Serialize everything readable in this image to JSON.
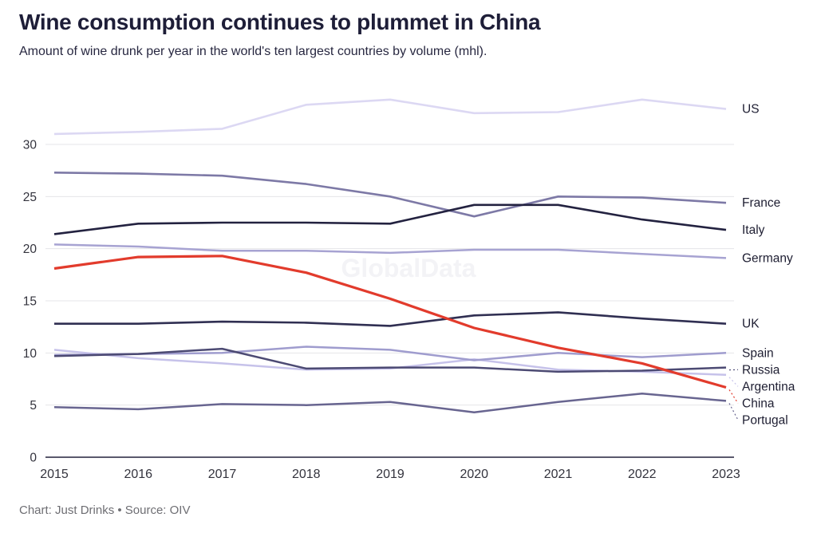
{
  "watermark": "GlobalData",
  "footer": {
    "credit": "Chart: Just Drinks • Source: OIV"
  },
  "colors": {
    "background": "#ffffff",
    "grid": "#e4e4e8",
    "axis": "#23223c",
    "tick_text": "#33333d",
    "series_label_text": "#1e1e32",
    "title_text": "#1e1e38",
    "subtitle_text": "#272740",
    "footer_text": "#6e6e73",
    "watermark_text": "#f3f3f6",
    "accent_red": "#e23b2c"
  },
  "chart_data": {
    "type": "line",
    "title": "Wine consumption continues to plummet in China",
    "subtitle": "Amount of wine drunk per year in the world's ten largest countries by volume (mhl).",
    "xlabel": "",
    "ylabel": "",
    "x": [
      2015,
      2016,
      2017,
      2018,
      2019,
      2020,
      2021,
      2022,
      2023
    ],
    "y_ticks": [
      0,
      5,
      10,
      15,
      20,
      25,
      30
    ],
    "ylim": [
      0,
      35.5
    ],
    "grid": "horizontal",
    "legend_position": "right-end-labels",
    "series": [
      {
        "name": "US",
        "color": "#dcd8f3",
        "width": 2.6,
        "values": [
          31.0,
          31.2,
          31.5,
          33.8,
          34.3,
          33.0,
          33.1,
          34.3,
          33.4
        ]
      },
      {
        "name": "France",
        "color": "#7d79a6",
        "width": 2.6,
        "values": [
          27.3,
          27.2,
          27.0,
          26.2,
          25.0,
          23.1,
          25.0,
          24.9,
          24.4
        ]
      },
      {
        "name": "Italy",
        "color": "#232240",
        "width": 2.6,
        "values": [
          21.4,
          22.4,
          22.5,
          22.5,
          22.4,
          24.2,
          24.2,
          22.8,
          21.8
        ]
      },
      {
        "name": "Germany",
        "color": "#a7a3d2",
        "width": 2.5,
        "values": [
          20.4,
          20.2,
          19.8,
          19.8,
          19.6,
          19.9,
          19.9,
          19.5,
          19.1
        ]
      },
      {
        "name": "UK",
        "color": "#302f52",
        "width": 2.6,
        "values": [
          12.8,
          12.8,
          13.0,
          12.9,
          12.6,
          13.6,
          13.9,
          13.3,
          12.8
        ]
      },
      {
        "name": "Spain",
        "color": "#9f9cce",
        "width": 2.5,
        "values": [
          9.8,
          9.9,
          10.0,
          10.6,
          10.3,
          9.3,
          10.0,
          9.6,
          10.0
        ]
      },
      {
        "name": "Russia",
        "color": "#4c4a73",
        "width": 2.5,
        "values": [
          9.7,
          9.9,
          10.4,
          8.5,
          8.6,
          8.6,
          8.2,
          8.3,
          8.6
        ]
      },
      {
        "name": "Argentina",
        "color": "#c6c2ea",
        "width": 2.5,
        "values": [
          10.3,
          9.5,
          9.0,
          8.4,
          8.5,
          9.4,
          8.4,
          8.2,
          7.9
        ]
      },
      {
        "name": "China",
        "color": "#e23b2c",
        "width": 3.2,
        "values": [
          18.1,
          19.2,
          19.3,
          17.7,
          15.2,
          12.4,
          10.5,
          9.0,
          6.7
        ]
      },
      {
        "name": "Portugal",
        "color": "#686590",
        "width": 2.5,
        "values": [
          4.8,
          4.6,
          5.1,
          5.0,
          5.3,
          4.3,
          5.3,
          6.1,
          5.4
        ]
      }
    ]
  }
}
